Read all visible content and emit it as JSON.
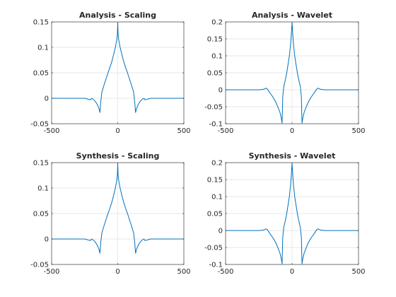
{
  "chart_data": [
    {
      "type": "line",
      "title": "Analysis - Scaling",
      "xlim": [
        -500,
        500
      ],
      "ylim": [
        -0.05,
        0.15
      ],
      "xticks": [
        "-500",
        "0",
        "500"
      ],
      "yticks": [
        "0.15",
        "0.1",
        "0.05",
        "0",
        "-0.05"
      ],
      "grid": true,
      "series": [
        {
          "color": "#0072bd",
          "points": [
            [
              -500,
              0
            ],
            [
              -250,
              0
            ],
            [
              -235,
              -0.001
            ],
            [
              -222,
              -0.002
            ],
            [
              -205,
              -0.003
            ],
            [
              -198,
              0
            ],
            [
              -185,
              -0.002
            ],
            [
              -170,
              -0.006
            ],
            [
              -155,
              -0.012
            ],
            [
              -142,
              -0.02
            ],
            [
              -135,
              -0.028
            ],
            [
              -128,
              -0.006
            ],
            [
              -120,
              0.012
            ],
            [
              -105,
              0.025
            ],
            [
              -90,
              0.037
            ],
            [
              -75,
              0.049
            ],
            [
              -60,
              0.06
            ],
            [
              -45,
              0.072
            ],
            [
              -30,
              0.087
            ],
            [
              -18,
              0.1
            ],
            [
              -8,
              0.114
            ],
            [
              -3,
              0.125
            ],
            [
              0,
              0.148
            ],
            [
              3,
              0.125
            ],
            [
              8,
              0.114
            ],
            [
              18,
              0.1
            ],
            [
              30,
              0.087
            ],
            [
              45,
              0.072
            ],
            [
              60,
              0.06
            ],
            [
              75,
              0.049
            ],
            [
              90,
              0.037
            ],
            [
              105,
              0.025
            ],
            [
              120,
              0.012
            ],
            [
              128,
              -0.006
            ],
            [
              135,
              -0.028
            ],
            [
              142,
              -0.02
            ],
            [
              155,
              -0.012
            ],
            [
              170,
              -0.006
            ],
            [
              185,
              -0.002
            ],
            [
              198,
              0
            ],
            [
              205,
              -0.003
            ],
            [
              222,
              -0.002
            ],
            [
              235,
              -0.001
            ],
            [
              250,
              0
            ],
            [
              500,
              0
            ]
          ]
        }
      ]
    },
    {
      "type": "line",
      "title": "Analysis - Wavelet",
      "xlim": [
        -500,
        500
      ],
      "ylim": [
        -0.1,
        0.2
      ],
      "xticks": [
        "-500",
        "0",
        "500"
      ],
      "yticks": [
        "0.2",
        "0.15",
        "0.1",
        "0.05",
        "0",
        "-0.05",
        "-0.1"
      ],
      "grid": true,
      "series": [
        {
          "color": "#0072bd",
          "points": [
            [
              -500,
              0
            ],
            [
              -250,
              0
            ],
            [
              -220,
              0.001
            ],
            [
              -205,
              0.003
            ],
            [
              -195,
              0.005
            ],
            [
              -185,
              0.002
            ],
            [
              -175,
              -0.004
            ],
            [
              -165,
              -0.01
            ],
            [
              -150,
              -0.018
            ],
            [
              -135,
              -0.027
            ],
            [
              -120,
              -0.038
            ],
            [
              -105,
              -0.052
            ],
            [
              -90,
              -0.068
            ],
            [
              -80,
              -0.085
            ],
            [
              -75,
              -0.098
            ],
            [
              -70,
              -0.02
            ],
            [
              -62,
              0.01
            ],
            [
              -50,
              0.03
            ],
            [
              -40,
              0.05
            ],
            [
              -30,
              0.075
            ],
            [
              -20,
              0.1
            ],
            [
              -12,
              0.13
            ],
            [
              -6,
              0.16
            ],
            [
              0,
              0.198
            ],
            [
              6,
              0.16
            ],
            [
              12,
              0.13
            ],
            [
              20,
              0.1
            ],
            [
              30,
              0.075
            ],
            [
              40,
              0.05
            ],
            [
              50,
              0.03
            ],
            [
              62,
              0.01
            ],
            [
              70,
              -0.02
            ],
            [
              75,
              -0.098
            ],
            [
              80,
              -0.085
            ],
            [
              90,
              -0.068
            ],
            [
              105,
              -0.052
            ],
            [
              120,
              -0.038
            ],
            [
              135,
              -0.027
            ],
            [
              150,
              -0.018
            ],
            [
              165,
              -0.01
            ],
            [
              175,
              -0.004
            ],
            [
              185,
              0.002
            ],
            [
              195,
              0.005
            ],
            [
              205,
              0.003
            ],
            [
              220,
              0.001
            ],
            [
              250,
              0
            ],
            [
              500,
              0
            ]
          ]
        }
      ]
    },
    {
      "type": "line",
      "title": "Synthesis - Scaling",
      "xlim": [
        -500,
        500
      ],
      "ylim": [
        -0.05,
        0.15
      ],
      "xticks": [
        "-500",
        "0",
        "500"
      ],
      "yticks": [
        "0.15",
        "0.1",
        "0.05",
        "0",
        "-0.05"
      ],
      "grid": true,
      "series": [
        {
          "color": "#0072bd",
          "points": [
            [
              -500,
              0
            ],
            [
              -250,
              0
            ],
            [
              -235,
              -0.001
            ],
            [
              -222,
              -0.002
            ],
            [
              -205,
              -0.003
            ],
            [
              -198,
              0
            ],
            [
              -185,
              -0.002
            ],
            [
              -170,
              -0.006
            ],
            [
              -155,
              -0.012
            ],
            [
              -142,
              -0.02
            ],
            [
              -135,
              -0.028
            ],
            [
              -128,
              -0.006
            ],
            [
              -120,
              0.012
            ],
            [
              -105,
              0.025
            ],
            [
              -90,
              0.037
            ],
            [
              -75,
              0.049
            ],
            [
              -60,
              0.06
            ],
            [
              -45,
              0.072
            ],
            [
              -30,
              0.087
            ],
            [
              -18,
              0.1
            ],
            [
              -8,
              0.114
            ],
            [
              -3,
              0.125
            ],
            [
              0,
              0.148
            ],
            [
              3,
              0.125
            ],
            [
              8,
              0.114
            ],
            [
              18,
              0.1
            ],
            [
              30,
              0.087
            ],
            [
              45,
              0.072
            ],
            [
              60,
              0.06
            ],
            [
              75,
              0.049
            ],
            [
              90,
              0.037
            ],
            [
              105,
              0.025
            ],
            [
              120,
              0.012
            ],
            [
              128,
              -0.006
            ],
            [
              135,
              -0.028
            ],
            [
              142,
              -0.02
            ],
            [
              155,
              -0.012
            ],
            [
              170,
              -0.006
            ],
            [
              185,
              -0.002
            ],
            [
              198,
              0
            ],
            [
              205,
              -0.003
            ],
            [
              222,
              -0.002
            ],
            [
              235,
              -0.001
            ],
            [
              250,
              0
            ],
            [
              500,
              0
            ]
          ]
        }
      ]
    },
    {
      "type": "line",
      "title": "Synthesis - Wavelet",
      "xlim": [
        -500,
        500
      ],
      "ylim": [
        -0.1,
        0.2
      ],
      "xticks": [
        "-500",
        "0",
        "500"
      ],
      "yticks": [
        "0.2",
        "0.15",
        "0.1",
        "0.05",
        "0",
        "-0.05",
        "-0.1"
      ],
      "grid": true,
      "series": [
        {
          "color": "#0072bd",
          "points": [
            [
              -500,
              0
            ],
            [
              -250,
              0
            ],
            [
              -220,
              0.001
            ],
            [
              -205,
              0.003
            ],
            [
              -195,
              0.005
            ],
            [
              -185,
              0.002
            ],
            [
              -175,
              -0.004
            ],
            [
              -165,
              -0.01
            ],
            [
              -150,
              -0.018
            ],
            [
              -135,
              -0.027
            ],
            [
              -120,
              -0.038
            ],
            [
              -105,
              -0.052
            ],
            [
              -90,
              -0.068
            ],
            [
              -80,
              -0.085
            ],
            [
              -75,
              -0.098
            ],
            [
              -70,
              -0.02
            ],
            [
              -62,
              0.01
            ],
            [
              -50,
              0.03
            ],
            [
              -40,
              0.05
            ],
            [
              -30,
              0.075
            ],
            [
              -20,
              0.1
            ],
            [
              -12,
              0.13
            ],
            [
              -6,
              0.16
            ],
            [
              0,
              0.198
            ],
            [
              6,
              0.16
            ],
            [
              12,
              0.13
            ],
            [
              20,
              0.1
            ],
            [
              30,
              0.075
            ],
            [
              40,
              0.05
            ],
            [
              50,
              0.03
            ],
            [
              62,
              0.01
            ],
            [
              70,
              -0.02
            ],
            [
              75,
              -0.098
            ],
            [
              80,
              -0.085
            ],
            [
              90,
              -0.068
            ],
            [
              105,
              -0.052
            ],
            [
              120,
              -0.038
            ],
            [
              135,
              -0.027
            ],
            [
              150,
              -0.018
            ],
            [
              165,
              -0.01
            ],
            [
              175,
              -0.004
            ],
            [
              185,
              0.002
            ],
            [
              195,
              0.005
            ],
            [
              205,
              0.003
            ],
            [
              220,
              0.001
            ],
            [
              250,
              0
            ],
            [
              500,
              0
            ]
          ]
        }
      ]
    }
  ]
}
